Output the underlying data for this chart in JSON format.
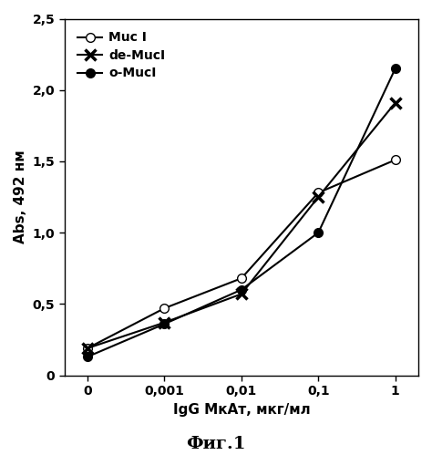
{
  "x_positions": [
    0,
    1,
    2,
    3,
    4
  ],
  "x_tick_labels": [
    "0",
    "0,001",
    "0,01",
    "0,1",
    "1"
  ],
  "series": {
    "Muc I": {
      "y": [
        0.19,
        0.47,
        0.68,
        1.28,
        1.51
      ],
      "marker": "o",
      "markerfacecolor": "white",
      "markeredgecolor": "black",
      "color": "black",
      "markersize": 7,
      "linewidth": 1.5
    },
    "de-MucI": {
      "y": [
        0.19,
        0.37,
        0.57,
        1.25,
        1.91
      ],
      "marker": "x",
      "markerfacecolor": "black",
      "markeredgecolor": "black",
      "color": "black",
      "markersize": 9,
      "linewidth": 1.5,
      "markeredgewidth": 2.5
    },
    "o-MucI": {
      "y": [
        0.13,
        0.36,
        0.6,
        1.0,
        2.15
      ],
      "marker": "o",
      "markerfacecolor": "black",
      "markeredgecolor": "black",
      "color": "black",
      "markersize": 7,
      "linewidth": 1.5
    }
  },
  "ylabel": "Abs, 492 нм",
  "xlabel": "IgG МкАт, мкг/мл",
  "title": "Фиг.1",
  "ylim": [
    0,
    2.5
  ],
  "yticks": [
    0,
    0.5,
    1.0,
    1.5,
    2.0,
    2.5
  ],
  "ytick_labels": [
    "0",
    "0,5",
    "1,0",
    "1,5",
    "2,0",
    "2,5"
  ],
  "background_color": "#ffffff",
  "legend_order": [
    "Muc I",
    "de-MucI",
    "o-MucI"
  ]
}
